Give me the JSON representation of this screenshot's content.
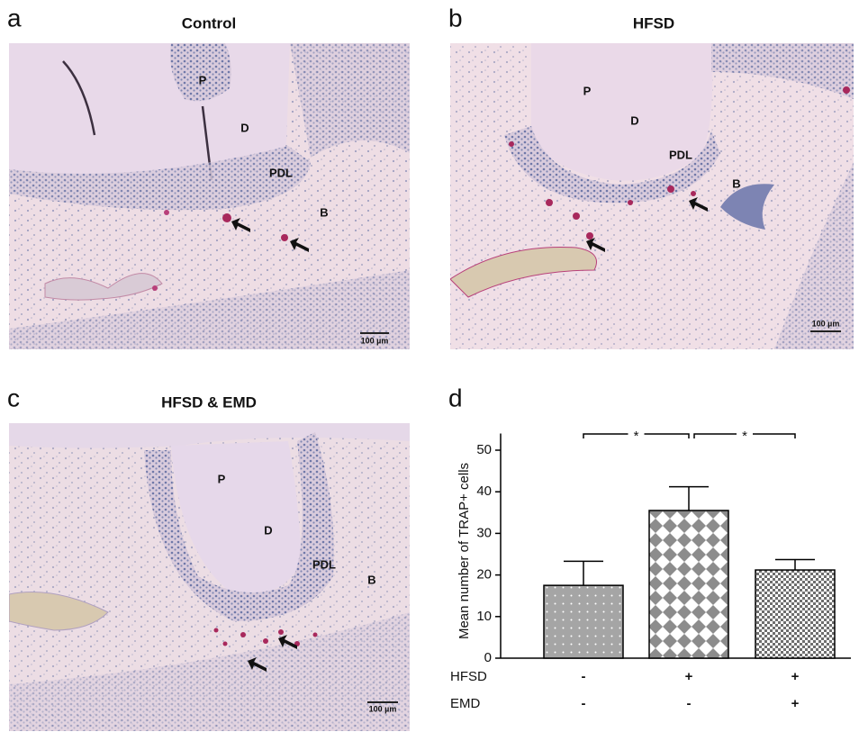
{
  "panels": [
    {
      "letter": "a",
      "title": "Control",
      "labels": [
        "P",
        "D",
        "PDL",
        "B"
      ],
      "scale_bar": "100 µm"
    },
    {
      "letter": "b",
      "title": "HFSD",
      "labels": [
        "P",
        "D",
        "PDL",
        "B"
      ],
      "scale_bar": "100 µm"
    },
    {
      "letter": "c",
      "title": "HFSD & EMD",
      "labels": [
        "P",
        "D",
        "PDL",
        "B"
      ],
      "scale_bar": "100 µm"
    }
  ],
  "chart_data": {
    "letter": "d",
    "type": "bar",
    "ylabel": "Mean number of TRAP+ cells",
    "values": [
      17.5,
      35.5,
      21.2
    ],
    "errors": [
      5.8,
      5.7,
      2.5
    ],
    "patterns": [
      "dots",
      "diamonds",
      "checks"
    ],
    "ylim": [
      0,
      54
    ],
    "yticks": [
      0,
      10,
      20,
      30,
      40,
      50
    ],
    "rows": [
      {
        "name": "HFSD",
        "values": [
          "-",
          "+",
          "+"
        ]
      },
      {
        "name": "EMD",
        "values": [
          "-",
          "-",
          "+"
        ]
      }
    ],
    "significance": [
      {
        "from": 0,
        "to": 1,
        "label": "*"
      },
      {
        "from": 1,
        "to": 2,
        "label": "*"
      }
    ]
  }
}
